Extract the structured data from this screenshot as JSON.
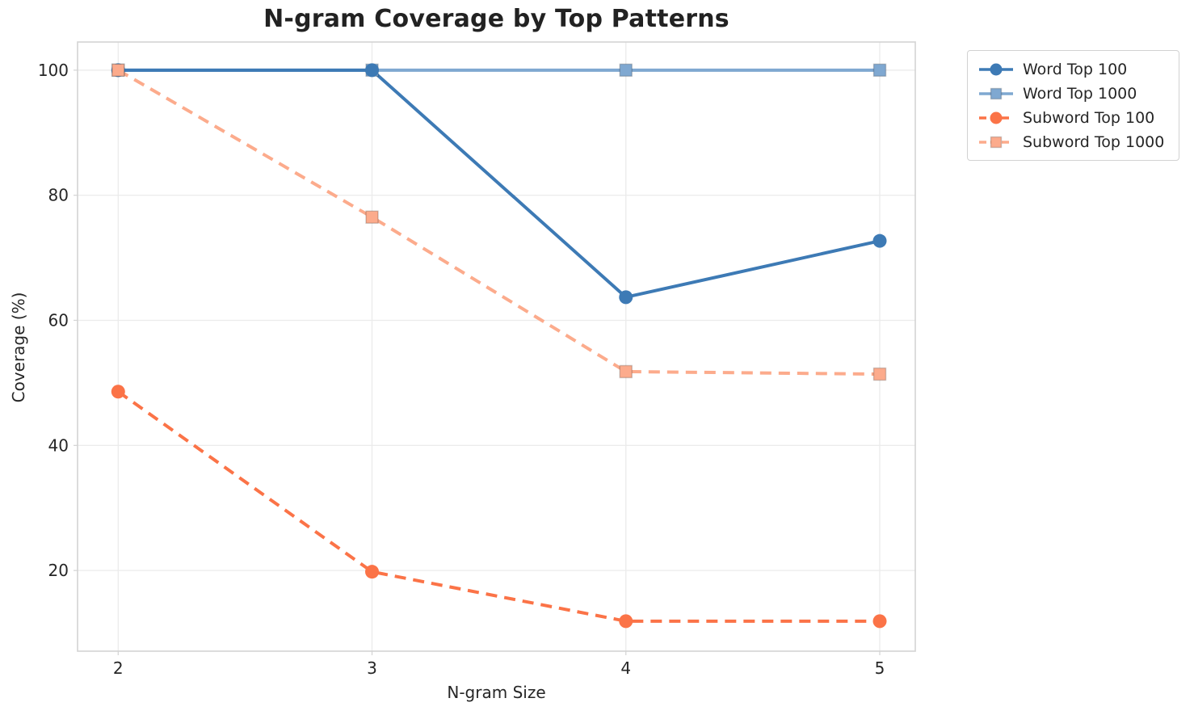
{
  "chart": {
    "title": "N-gram Coverage by Top Patterns",
    "xlabel": "N-gram Size",
    "ylabel": "Coverage (%)"
  },
  "chart_data": {
    "type": "line",
    "title": "N-gram Coverage by Top Patterns",
    "xlabel": "N-gram Size",
    "ylabel": "Coverage (%)",
    "x": [
      2,
      3,
      4,
      5
    ],
    "xticks": [
      2,
      3,
      4,
      5
    ],
    "yticks": [
      20,
      40,
      60,
      80,
      100
    ],
    "xlim": [
      1.84,
      5.14
    ],
    "ylim": [
      7.1,
      104.5
    ],
    "grid": true,
    "legend_position": "outside-upper-right",
    "series": [
      {
        "name": "Word Top 100",
        "color": "#3d7ab5",
        "linestyle": "solid",
        "marker": "circle",
        "values": [
          100,
          100,
          63.7,
          72.7
        ]
      },
      {
        "name": "Word Top 1000",
        "color": "#7fa8d1",
        "linestyle": "solid",
        "marker": "square",
        "values": [
          100,
          100,
          100,
          100
        ]
      },
      {
        "name": "Subword Top 100",
        "color": "#fb7347",
        "linestyle": "dashed",
        "marker": "circle",
        "values": [
          48.6,
          19.8,
          11.9,
          11.9
        ]
      },
      {
        "name": "Subword Top 1000",
        "color": "#fcab8c",
        "linestyle": "dashed",
        "marker": "square",
        "values": [
          100,
          76.5,
          51.8,
          51.4
        ]
      }
    ],
    "colors": {
      "grid": "#ebebeb",
      "spine": "#d3d3d3",
      "tick_label": "#262626"
    }
  }
}
